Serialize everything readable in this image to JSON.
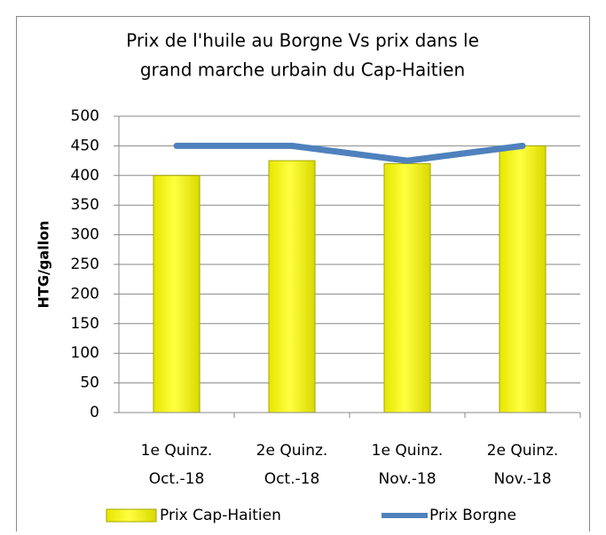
{
  "chart_data": {
    "type": "bar",
    "title": [
      "Prix de l'huile au Borgne Vs prix dans le",
      "grand marche urbain du Cap-Haitien"
    ],
    "y_label": "HTG/gallon",
    "categories": [
      [
        "1e Quinz.",
        "Oct.-18"
      ],
      [
        "2e Quinz.",
        "Oct.-18"
      ],
      [
        "1e Quinz.",
        "Nov.-18"
      ],
      [
        "2e Quinz.",
        "Nov.-18"
      ]
    ],
    "series": [
      {
        "name": "Prix Cap-Haitien",
        "type": "bar",
        "color": "#ffff00",
        "values": [
          400,
          425,
          420,
          450
        ]
      },
      {
        "name": "Prix Borgne",
        "type": "line",
        "color": "#4f81bd",
        "values": [
          450,
          450,
          425,
          450
        ]
      }
    ],
    "ylim": [
      0,
      500
    ],
    "yticks": [
      0,
      50,
      100,
      150,
      200,
      250,
      300,
      350,
      400,
      450,
      500
    ],
    "grid": true,
    "legend": "bottom"
  }
}
